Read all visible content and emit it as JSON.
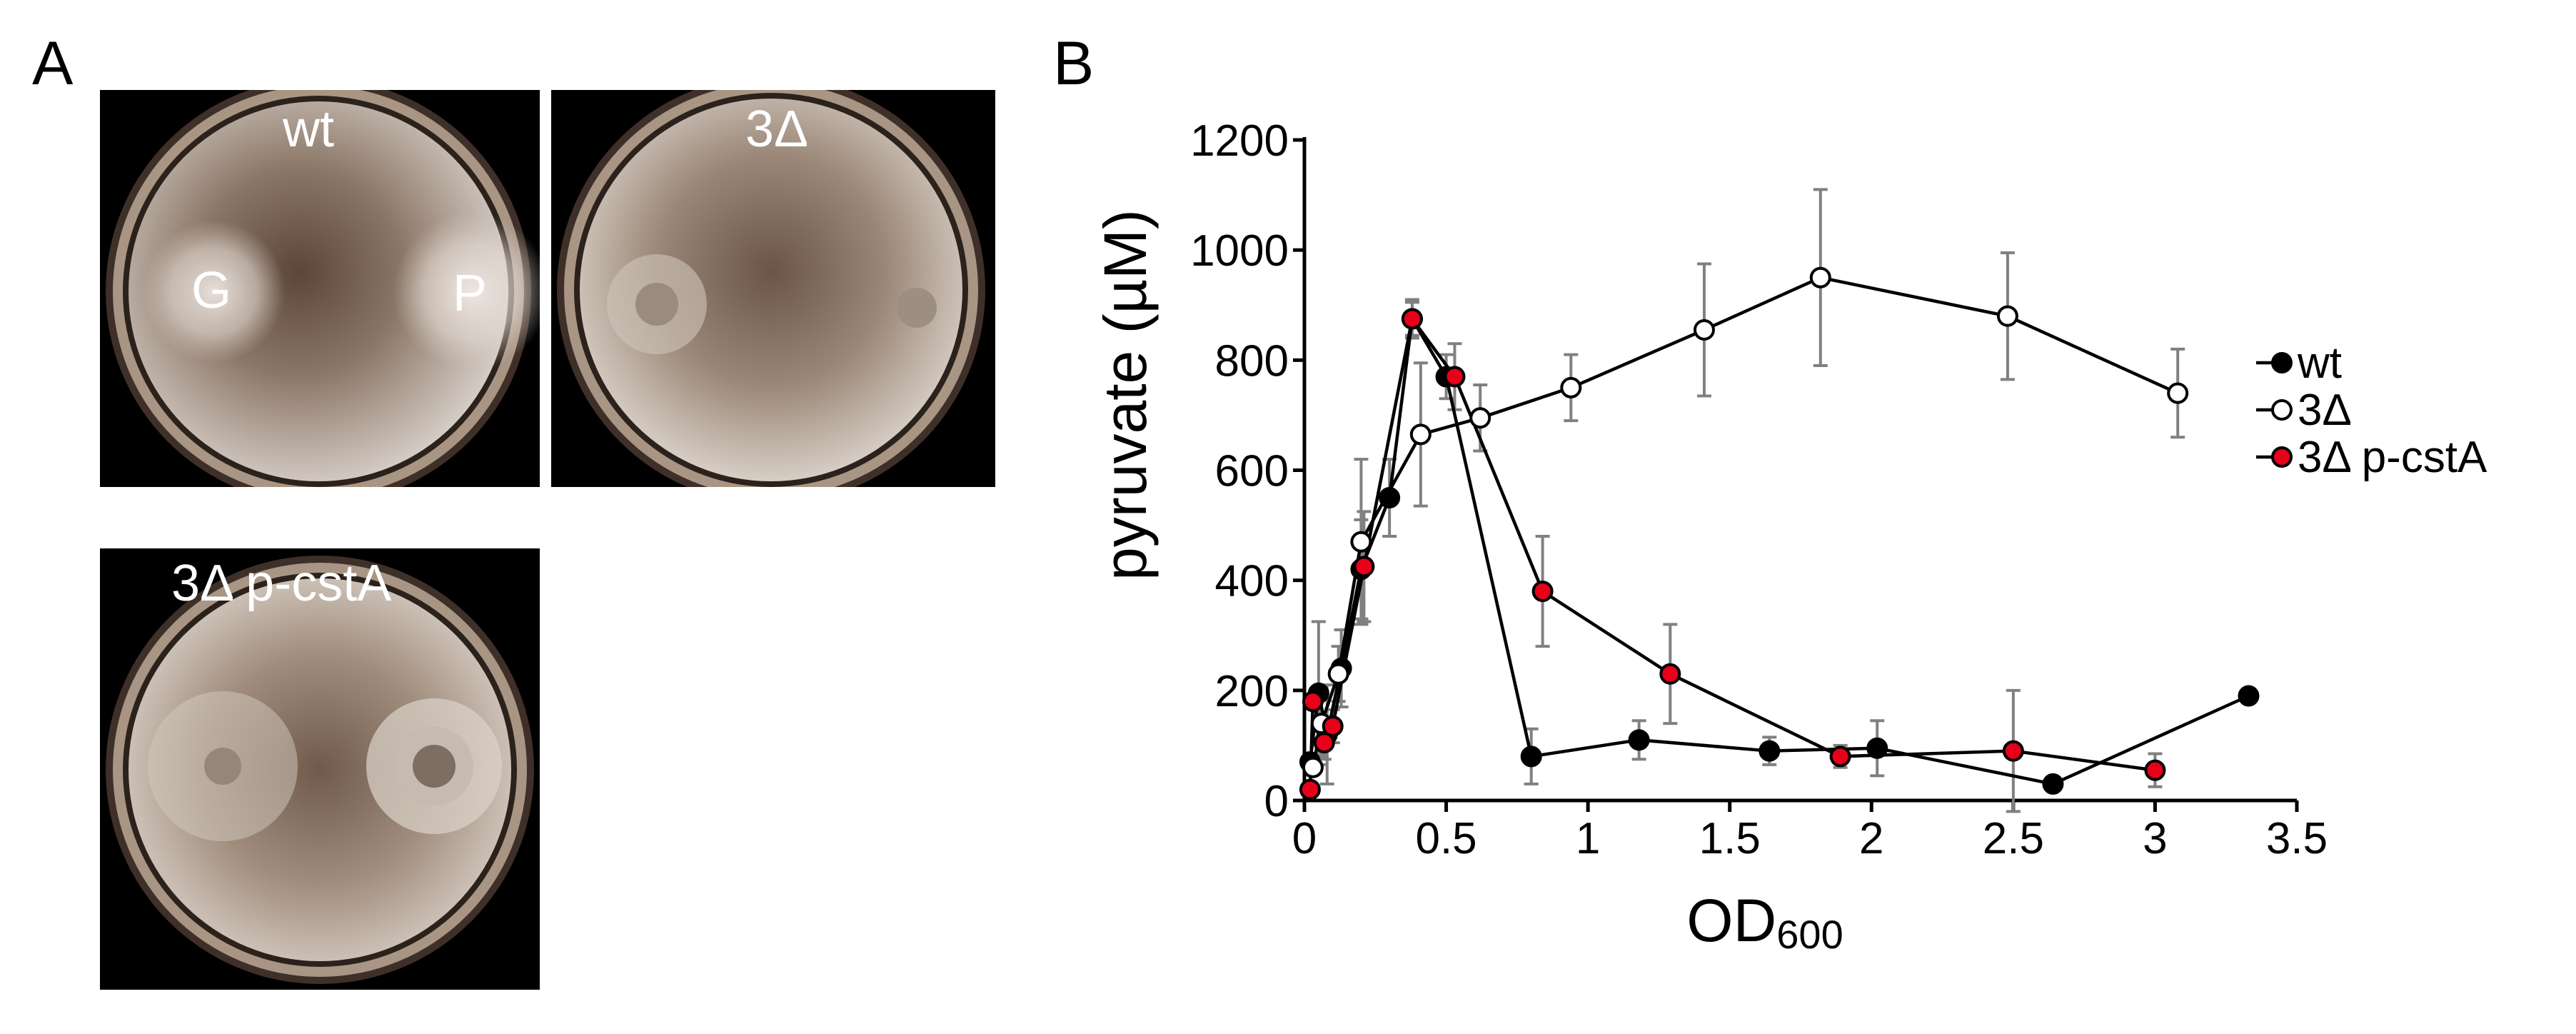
{
  "panels": {
    "a_label": "A",
    "b_label": "B"
  },
  "plates": [
    {
      "title": "wt",
      "spot_left_label": "G",
      "spot_right_label": "P"
    },
    {
      "title": "3Δ"
    },
    {
      "title": "3Δ p-cstA"
    }
  ],
  "colors": {
    "wt": "#000000",
    "delta3_fill": "#ffffff",
    "delta3_p_cstA": "#e8001a",
    "error_bar": "#808080"
  },
  "chart_data": {
    "type": "line",
    "title": "",
    "xlabel": "OD",
    "xlabel_sub": "600",
    "ylabel": "pyruvate (µM)",
    "xlim": [
      0,
      3.5
    ],
    "ylim": [
      0,
      1200
    ],
    "x_ticks": [
      0,
      0.5,
      1,
      1.5,
      2,
      2.5,
      3,
      3.5
    ],
    "x_tick_labels": [
      "0",
      "0.5",
      "1",
      "1.5",
      "2",
      "2.5",
      "3",
      "3.5"
    ],
    "y_ticks": [
      0,
      200,
      400,
      600,
      800,
      1000,
      1200
    ],
    "y_tick_labels": [
      "0",
      "200",
      "400",
      "600",
      "800",
      "1000",
      "1200"
    ],
    "legend_position": "right",
    "series": [
      {
        "name": "wt",
        "marker": "filled-black",
        "points": [
          {
            "x": 0.02,
            "y": 70,
            "err": 0
          },
          {
            "x": 0.05,
            "y": 195,
            "err": 130
          },
          {
            "x": 0.08,
            "y": 120,
            "err": 90
          },
          {
            "x": 0.13,
            "y": 240,
            "err": 70
          },
          {
            "x": 0.2,
            "y": 420,
            "err": 90
          },
          {
            "x": 0.3,
            "y": 550,
            "err": 70
          },
          {
            "x": 0.38,
            "y": 875,
            "err": 35
          },
          {
            "x": 0.5,
            "y": 770,
            "err": 40
          },
          {
            "x": 0.8,
            "y": 80,
            "err": 50
          },
          {
            "x": 1.18,
            "y": 110,
            "err": 35
          },
          {
            "x": 1.64,
            "y": 90,
            "err": 25
          },
          {
            "x": 2.02,
            "y": 95,
            "err": 50
          },
          {
            "x": 2.64,
            "y": 30,
            "err": 0
          },
          {
            "x": 3.33,
            "y": 190,
            "err": 0
          }
        ]
      },
      {
        "name": "3Δ",
        "marker": "open-circle",
        "points": [
          {
            "x": 0.03,
            "y": 60,
            "err": 0
          },
          {
            "x": 0.06,
            "y": 140,
            "err": 60
          },
          {
            "x": 0.12,
            "y": 230,
            "err": 50
          },
          {
            "x": 0.2,
            "y": 470,
            "err": 150
          },
          {
            "x": 0.41,
            "y": 665,
            "err": 130
          },
          {
            "x": 0.62,
            "y": 695,
            "err": 60
          },
          {
            "x": 0.94,
            "y": 750,
            "err": 60
          },
          {
            "x": 1.41,
            "y": 855,
            "err": 120
          },
          {
            "x": 1.82,
            "y": 950,
            "err": 160
          },
          {
            "x": 2.48,
            "y": 880,
            "err": 115
          },
          {
            "x": 3.08,
            "y": 740,
            "err": 80
          }
        ]
      },
      {
        "name": "3Δ p-cstA",
        "marker": "filled-red",
        "points": [
          {
            "x": 0.02,
            "y": 20,
            "err": 0
          },
          {
            "x": 0.03,
            "y": 180,
            "err": 0
          },
          {
            "x": 0.07,
            "y": 105,
            "err": 30
          },
          {
            "x": 0.1,
            "y": 135,
            "err": 30
          },
          {
            "x": 0.21,
            "y": 425,
            "err": 100
          },
          {
            "x": 0.38,
            "y": 875,
            "err": 30
          },
          {
            "x": 0.53,
            "y": 770,
            "err": 60
          },
          {
            "x": 0.84,
            "y": 380,
            "err": 100
          },
          {
            "x": 1.29,
            "y": 230,
            "err": 90
          },
          {
            "x": 1.89,
            "y": 80,
            "err": 20
          },
          {
            "x": 2.5,
            "y": 90,
            "err": 110
          },
          {
            "x": 3.0,
            "y": 55,
            "err": 30
          }
        ]
      }
    ]
  }
}
